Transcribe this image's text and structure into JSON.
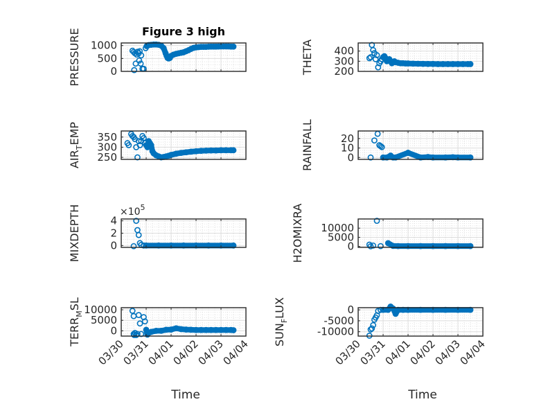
{
  "figure": {
    "title": "Figure 3 high",
    "marker_color": "#0072BD",
    "axis_color": "#262626",
    "background": "#ffffff"
  },
  "chart_data": [
    {
      "type": "scatter",
      "id": "pressure",
      "title": "Figure 3 high",
      "ylabel": "PRESSURE",
      "xlabel": "",
      "ylim": [
        0,
        1100
      ],
      "yticks": [
        0,
        500,
        1000
      ],
      "ytick_labels": [
        "0",
        "500",
        "1000"
      ],
      "xlim": [
        "03/30",
        "04/04"
      ],
      "xticks_days": [
        0,
        1,
        2,
        3,
        4,
        5
      ],
      "show_xtick_labels": false,
      "grid": true,
      "points_days": [
        0.45,
        0.5,
        0.55,
        0.62,
        0.7,
        0.72,
        0.78,
        0.85,
        0.9,
        0.52,
        0.58,
        0.66,
        0.8,
        0.74,
        0.98,
        1.02,
        1.05,
        1.08,
        1.1,
        1.2,
        1.3,
        1.4,
        1.5,
        1.6,
        1.7,
        1.78,
        1.82,
        1.86,
        1.9,
        1.95,
        2.0,
        2.1,
        2.2,
        2.3,
        2.4,
        2.5,
        2.6,
        2.7,
        2.8,
        2.9,
        3.0,
        3.1,
        3.2,
        3.3,
        3.4,
        3.5,
        3.6,
        3.7,
        3.8,
        3.9,
        4.0,
        4.1,
        4.2,
        4.3,
        4.4,
        4.5
      ],
      "points_values": [
        800,
        750,
        700,
        650,
        700,
        420,
        300,
        100,
        100,
        50,
        300,
        760,
        620,
        780,
        900,
        980,
        1000,
        1010,
        1020,
        1030,
        1040,
        1040,
        1030,
        1000,
        900,
        700,
        600,
        520,
        500,
        520,
        600,
        650,
        680,
        700,
        720,
        740,
        780,
        820,
        870,
        910,
        930,
        940,
        950,
        950,
        950,
        955,
        960,
        960,
        960,
        962,
        965,
        965,
        965,
        965,
        960,
        960
      ]
    },
    {
      "type": "scatter",
      "id": "theta",
      "ylabel": "THETA",
      "xlabel": "",
      "ylim": [
        200,
        480
      ],
      "yticks": [
        200,
        300,
        400
      ],
      "ytick_labels": [
        "200",
        "300",
        "400"
      ],
      "xlim": [
        "03/30",
        "04/04"
      ],
      "show_xtick_labels": false,
      "grid": true,
      "points_days": [
        0.45,
        0.5,
        0.55,
        0.6,
        0.65,
        0.7,
        0.75,
        0.8,
        0.85,
        0.9,
        0.95,
        1.0,
        1.05,
        1.1,
        1.15,
        1.2,
        1.25,
        1.3,
        1.35,
        1.4,
        1.45,
        1.5,
        1.6,
        1.7,
        1.8,
        1.9,
        2.0,
        2.2,
        2.4,
        2.6,
        2.8,
        3.0,
        3.2,
        3.4,
        3.6,
        3.8,
        4.0,
        4.2,
        4.4,
        4.5
      ],
      "points_values": [
        330,
        340,
        460,
        410,
        380,
        320,
        360,
        240,
        280,
        300,
        320,
        340,
        350,
        330,
        300,
        310,
        320,
        300,
        280,
        290,
        300,
        290,
        285,
        280,
        280,
        278,
        278,
        276,
        275,
        274,
        273,
        273,
        272,
        272,
        272,
        272,
        272,
        272,
        272,
        272
      ]
    },
    {
      "type": "scatter",
      "id": "air_temp",
      "ylabel": "AIR_TEMP",
      "ylabel_display": [
        "AIR",
        "T",
        "EMP"
      ],
      "xlabel": "",
      "ylim": [
        240,
        380
      ],
      "yticks": [
        250,
        300,
        350
      ],
      "ytick_labels": [
        "250",
        "300",
        "350"
      ],
      "xlim": [
        "03/30",
        "04/04"
      ],
      "show_xtick_labels": false,
      "grid": true,
      "points_days": [
        0.25,
        0.3,
        0.4,
        0.45,
        0.5,
        0.55,
        0.6,
        0.65,
        0.7,
        0.75,
        0.8,
        0.85,
        0.9,
        0.95,
        1.0,
        1.05,
        1.1,
        1.15,
        1.2,
        1.25,
        1.3,
        1.4,
        1.5,
        1.6,
        1.7,
        1.8,
        1.9,
        2.0,
        2.2,
        2.4,
        2.6,
        2.8,
        3.0,
        3.2,
        3.4,
        3.6,
        3.8,
        4.0,
        4.2,
        4.4,
        4.5
      ],
      "points_values": [
        320,
        310,
        365,
        355,
        350,
        340,
        300,
        250,
        330,
        310,
        330,
        355,
        345,
        320,
        310,
        300,
        330,
        320,
        310,
        280,
        270,
        260,
        255,
        250,
        252,
        255,
        258,
        262,
        268,
        272,
        275,
        278,
        280,
        282,
        283,
        284,
        284,
        285,
        285,
        285,
        285
      ]
    },
    {
      "type": "scatter",
      "id": "rainfall",
      "ylabel": "RAINFALL",
      "xlabel": "",
      "ylim": [
        -2,
        28
      ],
      "yticks": [
        0,
        10,
        20
      ],
      "ytick_labels": [
        "0",
        "10",
        "20"
      ],
      "xlim": [
        "03/30",
        "04/04"
      ],
      "show_xtick_labels": false,
      "grid": true,
      "points_days": [
        0.5,
        0.65,
        0.78,
        0.85,
        0.9,
        0.95,
        1.0,
        1.15,
        1.3,
        1.4,
        1.5,
        2.0,
        2.5,
        3.0,
        3.5,
        4.0,
        4.5,
        2.8,
        3.8
      ],
      "points_values": [
        0,
        18,
        25,
        13,
        12,
        11,
        0,
        0,
        2,
        0,
        0,
        5,
        0,
        0,
        0,
        0,
        0,
        0.5,
        0.3
      ]
    },
    {
      "type": "scatter",
      "id": "mixdepth",
      "ylabel": "MIXDEPTH",
      "xlabel": "",
      "ylim": [
        -0.3,
        4.3
      ],
      "y_multiplier": "×10",
      "y_exponent": "5",
      "yticks": [
        0,
        2,
        4
      ],
      "ytick_labels": [
        "0",
        "2",
        "4"
      ],
      "xlim": [
        "03/30",
        "04/04"
      ],
      "show_xtick_labels": false,
      "grid": true,
      "points_days": [
        0.5,
        0.6,
        0.65,
        0.7,
        0.75,
        0.8,
        0.9,
        1.0,
        1.5,
        2.0,
        2.5,
        3.0,
        3.5,
        4.0,
        4.5
      ],
      "points_values": [
        -0.1,
        4.0,
        2.5,
        1.7,
        0.4,
        0.1,
        0.0,
        0.0,
        0.0,
        0.0,
        0.0,
        0.0,
        0.0,
        0.0,
        0.0
      ]
    },
    {
      "type": "scatter",
      "id": "h2omixra",
      "ylabel": "H2OMIXRA",
      "xlabel": "",
      "ylim": [
        -500,
        15000
      ],
      "yticks": [
        0,
        5000,
        10000
      ],
      "ytick_labels": [
        "0",
        "5000",
        "10000"
      ],
      "xlim": [
        "03/30",
        "04/04"
      ],
      "show_xtick_labels": false,
      "grid": true,
      "points_days": [
        0.45,
        0.5,
        0.6,
        0.75,
        0.9,
        1.2,
        1.4,
        1.6,
        2.0,
        2.5,
        3.0,
        3.5,
        4.0,
        4.5
      ],
      "points_values": [
        1000,
        100,
        500,
        14000,
        200,
        1800,
        300,
        200,
        200,
        200,
        200,
        200,
        200,
        200
      ]
    },
    {
      "type": "scatter",
      "id": "terr_msl",
      "ylabel": "TERR_MSL",
      "ylabel_display": [
        "TERR",
        "M",
        "SL"
      ],
      "xlabel": "Time",
      "ylim": [
        -2500,
        11000
      ],
      "yticks": [
        0,
        5000,
        10000
      ],
      "ytick_labels": [
        "0",
        "5000",
        "10000"
      ],
      "xlim": [
        "03/30",
        "04/04"
      ],
      "xtick_labels": [
        "03/30",
        "03/31",
        "04/01",
        "04/02",
        "04/03",
        "04/04"
      ],
      "show_xtick_labels": true,
      "grid": true,
      "points_days": [
        0.45,
        0.5,
        0.55,
        0.6,
        0.7,
        0.75,
        0.8,
        0.9,
        0.95,
        1.0,
        1.05,
        1.1,
        1.2,
        1.4,
        1.6,
        1.8,
        2.0,
        2.2,
        2.4,
        2.6,
        2.8,
        3.0,
        3.2,
        3.4,
        3.6,
        3.8,
        4.0,
        4.2,
        4.4,
        4.5,
        0.5,
        0.52,
        0.65
      ],
      "points_values": [
        9500,
        7000,
        -1000,
        -2000,
        7500,
        3500,
        -1500,
        6500,
        4500,
        500,
        -1800,
        -1000,
        -500,
        0,
        0,
        500,
        600,
        1200,
        800,
        600,
        500,
        400,
        400,
        400,
        400,
        400,
        400,
        400,
        400,
        300,
        -1500,
        -2000,
        -1500
      ]
    },
    {
      "type": "scatter",
      "id": "sun_flux",
      "ylabel": "SUN_FLUX",
      "ylabel_display": [
        "SUN",
        "F",
        "LUX"
      ],
      "xlabel": "Time",
      "ylim": [
        -12000,
        1000
      ],
      "yticks": [
        -10000,
        -5000,
        0
      ],
      "ytick_labels": [
        "-10000",
        "-5000",
        "0"
      ],
      "xlim": [
        "03/30",
        "04/04"
      ],
      "xtick_labels": [
        "03/30",
        "03/31",
        "04/01",
        "04/02",
        "04/03",
        "04/04"
      ],
      "show_xtick_labels": true,
      "grid": true,
      "points_days": [
        0.45,
        0.5,
        0.55,
        0.6,
        0.65,
        0.7,
        0.75,
        0.8,
        0.9,
        1.0,
        1.2,
        1.3,
        1.4,
        1.5,
        1.6,
        1.8,
        2.0,
        2.5,
        3.0,
        3.5,
        4.0,
        4.5
      ],
      "points_values": [
        -11800,
        -9000,
        -8500,
        -7000,
        -4500,
        -3500,
        -2500,
        -500,
        0,
        0,
        0,
        1500,
        600,
        -1800,
        0,
        0,
        0,
        0,
        0,
        0,
        0,
        0
      ]
    }
  ]
}
